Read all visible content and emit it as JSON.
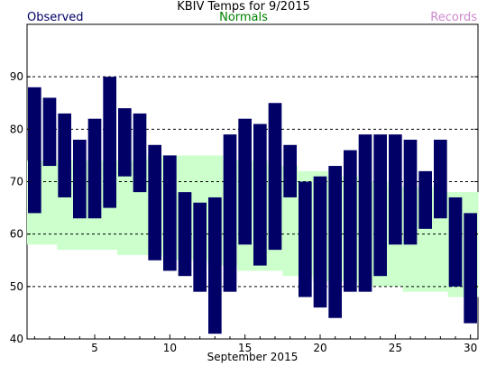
{
  "chart_data": {
    "type": "bar",
    "title": "KBIV Temps for 9/2015",
    "xlabel": "September 2015",
    "ylabel": "",
    "legend": [
      "Observed",
      "Normals",
      "Records"
    ],
    "legend_placement": "top",
    "ylim": [
      40,
      100
    ],
    "y_ticks": [
      40,
      50,
      60,
      70,
      80,
      90
    ],
    "x_ticks": [
      5,
      10,
      15,
      20,
      25,
      30
    ],
    "grid": "horizontal dashed",
    "colors": {
      "observed": "#000066",
      "normals": "#ccffcc",
      "records": "#cc88cc"
    },
    "days": [
      1,
      2,
      3,
      4,
      5,
      6,
      7,
      8,
      9,
      10,
      11,
      12,
      13,
      14,
      15,
      16,
      17,
      18,
      19,
      20,
      21,
      22,
      23,
      24,
      25,
      26,
      27,
      28,
      29,
      30
    ],
    "series": [
      {
        "name": "Observed",
        "high": [
          88,
          86,
          83,
          78,
          82,
          90,
          84,
          83,
          77,
          75,
          68,
          66,
          67,
          79,
          82,
          81,
          85,
          77,
          70,
          71,
          73,
          76,
          79,
          79,
          79,
          78,
          72,
          78,
          67,
          64
        ],
        "low": [
          64,
          73,
          67,
          63,
          63,
          65,
          71,
          68,
          55,
          53,
          52,
          49,
          41,
          49,
          58,
          54,
          57,
          67,
          48,
          46,
          44,
          49,
          49,
          52,
          58,
          58,
          61,
          63,
          50,
          43
        ]
      },
      {
        "name": "Normals",
        "high": [
          74,
          74,
          74,
          74,
          74,
          74,
          74,
          74,
          75,
          75,
          75,
          75,
          75,
          74,
          74,
          74,
          73,
          73,
          72,
          72,
          71,
          71,
          70,
          70,
          69,
          69,
          69,
          68,
          68,
          68
        ],
        "low": [
          58,
          58,
          57,
          57,
          57,
          57,
          56,
          56,
          56,
          55,
          55,
          55,
          54,
          54,
          53,
          53,
          53,
          52,
          52,
          51,
          51,
          51,
          50,
          50,
          50,
          49,
          49,
          49,
          48,
          48
        ]
      }
    ]
  }
}
